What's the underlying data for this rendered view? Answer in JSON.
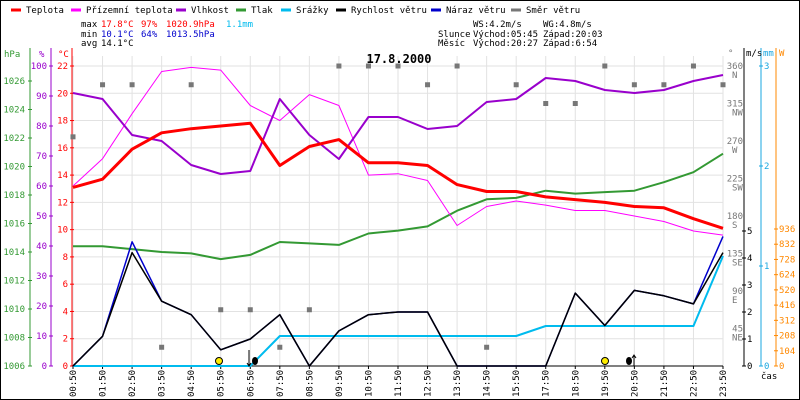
{
  "colors": {
    "temp": "#ff0000",
    "feels": "#ff00ff",
    "humidity": "#9900cc",
    "pressure": "#339933",
    "precip": "#00bbee",
    "wind": "#000000",
    "gust": "#0000cc",
    "dir": "#777777",
    "power": "#ff8800",
    "sun": "#ffee00"
  },
  "legend": [
    {
      "label": "Teplota",
      "color": "#ff0000"
    },
    {
      "label": "Přízemní teplota",
      "color": "#ff00ff"
    },
    {
      "label": "Vlhkost",
      "color": "#9900cc"
    },
    {
      "label": "Tlak",
      "color": "#339933"
    },
    {
      "label": "Srážky",
      "color": "#00bbee"
    },
    {
      "label": "Rychlost větru",
      "color": "#000000"
    },
    {
      "label": "Náraz větru",
      "color": "#0000cc"
    },
    {
      "label": "Směr větru",
      "color": "#777777"
    }
  ],
  "stats": {
    "max_label": "max",
    "max_temp": "17.8°C",
    "max_hum": "97%",
    "max_press": "1020.9hPa",
    "precip": "1.1mm",
    "min_label": "min",
    "min_temp": "10.1°C",
    "min_hum": "64%",
    "min_press": "1013.5hPa",
    "avg_label": "avg",
    "avg_temp": "14.1°C",
    "ws": "WS:4.2m/s",
    "wg": "WG:4.8m/s",
    "sun_label": "Slunce",
    "sun_rise": "Východ:05:45",
    "sun_set": "Západ:20:03",
    "moon_label": "Měsíc",
    "moon_rise": "Východ:20:27",
    "moon_set": "Západ:6:54"
  },
  "chart_data": {
    "type": "line",
    "title": "17.8.2000",
    "xlabel": "čas",
    "x": [
      "00:50",
      "01:50",
      "02:50",
      "03:50",
      "04:50",
      "05:50",
      "06:50",
      "07:50",
      "08:50",
      "09:50",
      "10:50",
      "11:50",
      "12:50",
      "13:50",
      "14:50",
      "15:50",
      "17:50",
      "18:50",
      "19:50",
      "20:50",
      "21:50",
      "22:50",
      "23:50"
    ],
    "axes": {
      "hPa": {
        "label": "hPa",
        "range": [
          1006,
          1026.8
        ],
        "ticks": [
          1006,
          1008,
          1010,
          1012,
          1014,
          1016,
          1018,
          1020,
          1022,
          1024,
          1026
        ]
      },
      "percent": {
        "label": "%",
        "range": [
          0,
          100
        ],
        "ticks": [
          0,
          10,
          20,
          30,
          40,
          50,
          60,
          70,
          80,
          90,
          100
        ]
      },
      "celsius": {
        "label": "°C",
        "range": [
          0,
          22
        ],
        "ticks": [
          0,
          2,
          4,
          6,
          8,
          10,
          12,
          14,
          16,
          18,
          20,
          22
        ]
      },
      "degrees": {
        "label": "°",
        "range": [
          0,
          360
        ],
        "ticks": [
          {
            "v": 45,
            "t": "45",
            "d": "NE"
          },
          {
            "v": 90,
            "t": "90",
            "d": "E"
          },
          {
            "v": 135,
            "t": "135",
            "d": "SE"
          },
          {
            "v": 180,
            "t": "180",
            "d": "S"
          },
          {
            "v": 225,
            "t": "225",
            "d": "SW"
          },
          {
            "v": 270,
            "t": "270",
            "d": "W"
          },
          {
            "v": 315,
            "t": "315",
            "d": "NW"
          },
          {
            "v": 360,
            "t": "360",
            "d": "N"
          }
        ]
      },
      "ms": {
        "label": "m/s",
        "range": [
          0,
          5
        ],
        "ticks": [
          0,
          1,
          2,
          3,
          4,
          5
        ]
      },
      "mm": {
        "label": "mm",
        "range": [
          0,
          3
        ],
        "ticks": [
          0,
          1,
          2,
          3
        ]
      },
      "W": {
        "label": "W",
        "range": [
          0,
          936
        ],
        "ticks": [
          0,
          104,
          208,
          312,
          416,
          520,
          624,
          728,
          832,
          936
        ]
      }
    },
    "series": [
      {
        "name": "Teplota",
        "axis": "celsius",
        "values": [
          13.1,
          13.7,
          15.9,
          17.1,
          17.4,
          17.6,
          17.8,
          14.7,
          16.1,
          16.6,
          14.9,
          14.9,
          14.7,
          13.3,
          12.8,
          12.8,
          12.4,
          12.2,
          12.0,
          11.7,
          11.6,
          10.8,
          10.1
        ]
      },
      {
        "name": "Přízemní teplota",
        "axis": "celsius",
        "values": [
          13.2,
          15.2,
          18.5,
          21.6,
          21.9,
          21.7,
          19.1,
          18.0,
          19.9,
          19.1,
          14.0,
          14.1,
          13.6,
          10.3,
          11.7,
          12.1,
          11.8,
          11.4,
          11.4,
          11.0,
          10.6,
          9.9,
          9.6
        ]
      },
      {
        "name": "Vlhkost",
        "axis": "percent",
        "values": [
          91,
          89,
          77,
          75,
          67,
          64,
          65,
          89,
          77,
          69,
          83,
          83,
          79,
          80,
          88,
          89,
          96,
          95,
          92,
          91,
          92,
          95,
          97
        ]
      },
      {
        "name": "Tlak",
        "axis": "hPa",
        "values": [
          1014.4,
          1014.4,
          1014.2,
          1014.0,
          1013.9,
          1013.5,
          1013.8,
          1014.7,
          1014.6,
          1014.5,
          1015.3,
          1015.5,
          1015.8,
          1016.9,
          1017.7,
          1017.8,
          1018.3,
          1018.1,
          1018.2,
          1018.3,
          1018.9,
          1019.6,
          1020.9
        ]
      },
      {
        "name": "Srážky",
        "axis": "mm",
        "values": [
          0,
          0,
          0,
          0,
          0,
          0,
          0,
          0.3,
          0.3,
          0.3,
          0.3,
          0.3,
          0.3,
          0.3,
          0.3,
          0.3,
          0.4,
          0.4,
          0.4,
          0.4,
          0.4,
          0.4,
          1.1
        ]
      },
      {
        "name": "Rychlost větru",
        "axis": "ms",
        "values": [
          0,
          1.1,
          4.2,
          2.4,
          1.9,
          0.6,
          1.0,
          1.9,
          0,
          1.3,
          1.9,
          2.0,
          2.0,
          0,
          0,
          0,
          0,
          2.7,
          1.5,
          2.8,
          2.6,
          2.3,
          4.2
        ]
      },
      {
        "name": "Náraz větru",
        "axis": "ms",
        "values": [
          0,
          1.1,
          4.6,
          2.4,
          1.9,
          0.6,
          1.0,
          1.9,
          0,
          1.3,
          1.9,
          2.0,
          2.0,
          0,
          0,
          0,
          0,
          2.7,
          1.5,
          2.8,
          2.6,
          2.3,
          4.8
        ]
      },
      {
        "name": "Směr větru",
        "axis": "degrees",
        "values": [
          275,
          337.5,
          337.5,
          22.5,
          337.5,
          67.5,
          67.5,
          22.5,
          67.5,
          360,
          360,
          360,
          337.5,
          360,
          22.5,
          337.5,
          315,
          315,
          360,
          337.5,
          337.5,
          360,
          337.5
        ]
      }
    ],
    "events": [
      {
        "type": "sunrise",
        "time": "05:45"
      },
      {
        "type": "moonrise-marker",
        "time": "06:50"
      },
      {
        "type": "sunset",
        "time": "20:03"
      },
      {
        "type": "moonset-marker",
        "time": "20:27"
      }
    ]
  }
}
